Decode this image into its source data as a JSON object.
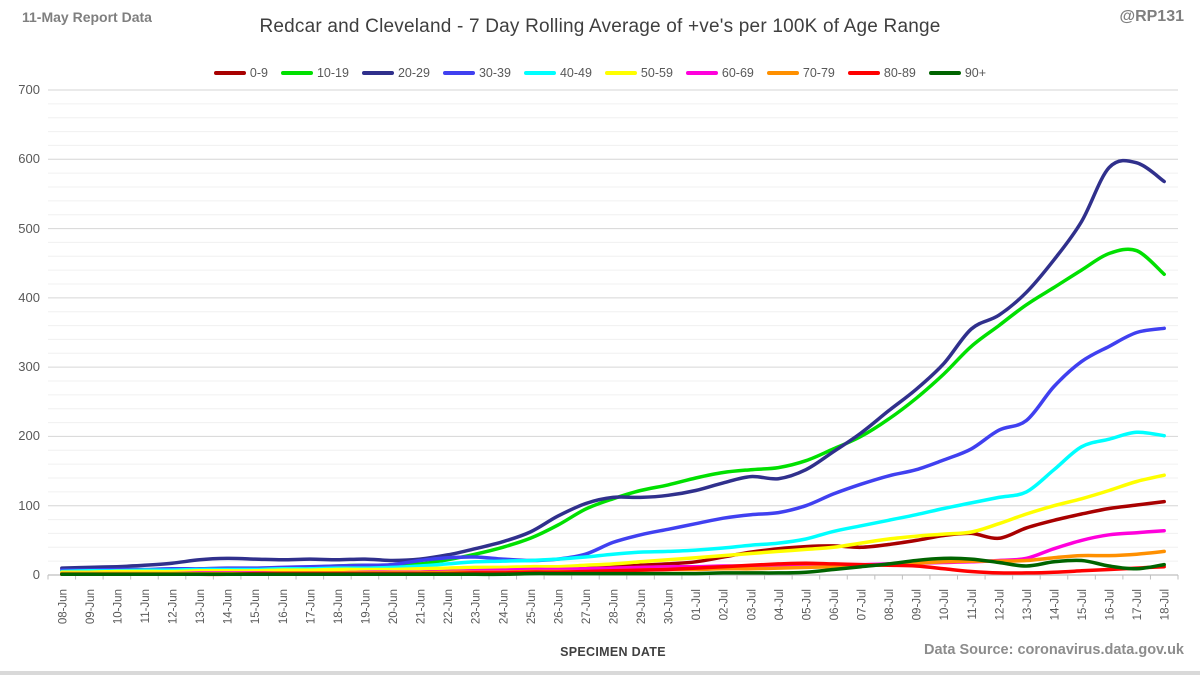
{
  "header": {
    "report_label": "11-May Report Data",
    "handle": "@RP131"
  },
  "footer": {
    "xaxis_title": "SPECIMEN DATE",
    "data_source": "Data Source: coronavirus.data.gov.uk"
  },
  "colors": {
    "title_text": "#3f3f3f",
    "axis_text": "#595959",
    "muted_text": "#7f7f7f",
    "major_grid": "#d6d6d6",
    "minor_grid": "#f0f0f0",
    "axis_line": "#bfbfbf"
  },
  "chart_data": {
    "type": "line",
    "title": "Redcar and Cleveland - 7 Day Rolling Average of +ve's per 100K of Age Range",
    "xlabel": "SPECIMEN DATE",
    "ylabel": "",
    "ylim": [
      0,
      700
    ],
    "y_tick_step": 100,
    "y_minor_step": 20,
    "grid": true,
    "legend_position": "top",
    "categories": [
      "08-Jun",
      "09-Jun",
      "10-Jun",
      "11-Jun",
      "12-Jun",
      "13-Jun",
      "14-Jun",
      "15-Jun",
      "16-Jun",
      "17-Jun",
      "18-Jun",
      "19-Jun",
      "20-Jun",
      "21-Jun",
      "22-Jun",
      "23-Jun",
      "24-Jun",
      "25-Jun",
      "26-Jun",
      "27-Jun",
      "28-Jun",
      "29-Jun",
      "30-Jun",
      "01-Jul",
      "02-Jul",
      "03-Jul",
      "04-Jul",
      "05-Jul",
      "06-Jul",
      "07-Jul",
      "08-Jul",
      "09-Jul",
      "10-Jul",
      "11-Jul",
      "12-Jul",
      "13-Jul",
      "14-Jul",
      "15-Jul",
      "16-Jul",
      "17-Jul",
      "18-Jul"
    ],
    "series": [
      {
        "name": "0-9",
        "color": "#a80000",
        "values": [
          2,
          2,
          2,
          2,
          3,
          3,
          3,
          3,
          3,
          4,
          4,
          4,
          4,
          5,
          5,
          6,
          7,
          8,
          9,
          10,
          12,
          14,
          16,
          19,
          26,
          33,
          38,
          41,
          42,
          40,
          44,
          50,
          57,
          60,
          53,
          68,
          79,
          88,
          96,
          101,
          106
        ]
      },
      {
        "name": "10-19",
        "color": "#00e000",
        "values": [
          3,
          4,
          4,
          5,
          6,
          7,
          8,
          9,
          10,
          11,
          13,
          14,
          14,
          16,
          22,
          30,
          40,
          53,
          72,
          95,
          110,
          122,
          130,
          140,
          148,
          152,
          155,
          165,
          182,
          200,
          225,
          255,
          290,
          330,
          360,
          390,
          415,
          440,
          464,
          468,
          434
        ]
      },
      {
        "name": "20-29",
        "color": "#30308c",
        "values": [
          10,
          11,
          12,
          14,
          17,
          22,
          24,
          23,
          22,
          23,
          22,
          23,
          21,
          23,
          29,
          38,
          48,
          62,
          85,
          103,
          112,
          112,
          115,
          122,
          133,
          142,
          139,
          152,
          178,
          205,
          237,
          268,
          305,
          355,
          375,
          408,
          455,
          510,
          588,
          595,
          568
        ]
      },
      {
        "name": "30-39",
        "color": "#4040f0",
        "values": [
          7,
          7,
          8,
          8,
          9,
          9,
          10,
          10,
          11,
          12,
          13,
          14,
          15,
          21,
          25,
          26,
          23,
          21,
          23,
          30,
          47,
          58,
          66,
          74,
          82,
          87,
          90,
          100,
          117,
          131,
          143,
          152,
          166,
          182,
          209,
          223,
          272,
          308,
          330,
          350,
          356
        ]
      },
      {
        "name": "40-49",
        "color": "#00ffff",
        "values": [
          5,
          6,
          6,
          7,
          7,
          8,
          8,
          8,
          9,
          9,
          10,
          10,
          11,
          13,
          16,
          19,
          20,
          21,
          23,
          26,
          30,
          33,
          34,
          36,
          39,
          43,
          46,
          52,
          63,
          71,
          79,
          87,
          96,
          104,
          112,
          120,
          152,
          185,
          196,
          206,
          201
        ]
      },
      {
        "name": "50-59",
        "color": "#ffff00",
        "values": [
          4,
          4,
          5,
          5,
          5,
          6,
          6,
          6,
          7,
          7,
          8,
          8,
          8,
          9,
          10,
          11,
          11,
          12,
          12,
          14,
          16,
          19,
          22,
          25,
          28,
          31,
          34,
          37,
          40,
          46,
          52,
          56,
          59,
          62,
          74,
          88,
          100,
          110,
          122,
          135,
          144
        ]
      },
      {
        "name": "60-69",
        "color": "#ff00dc",
        "values": [
          2,
          2,
          2,
          2,
          2,
          3,
          3,
          3,
          3,
          3,
          3,
          4,
          4,
          4,
          5,
          6,
          7,
          8,
          8,
          9,
          10,
          11,
          12,
          12,
          13,
          13,
          14,
          14,
          15,
          15,
          16,
          17,
          18,
          19,
          21,
          24,
          38,
          50,
          58,
          61,
          64
        ]
      },
      {
        "name": "70-79",
        "color": "#ff9000",
        "values": [
          2,
          2,
          2,
          2,
          2,
          2,
          2,
          2,
          3,
          3,
          3,
          3,
          3,
          3,
          4,
          4,
          4,
          5,
          5,
          5,
          6,
          7,
          8,
          8,
          9,
          9,
          10,
          11,
          12,
          13,
          15,
          17,
          19,
          20,
          20,
          21,
          25,
          28,
          28,
          30,
          34
        ]
      },
      {
        "name": "80-89",
        "color": "#ff0000",
        "values": [
          1,
          1,
          1,
          1,
          1,
          1,
          1,
          2,
          2,
          2,
          2,
          2,
          2,
          2,
          2,
          3,
          3,
          4,
          4,
          5,
          6,
          7,
          8,
          10,
          12,
          14,
          16,
          17,
          16,
          15,
          14,
          13,
          9,
          5,
          3,
          3,
          4,
          6,
          8,
          10,
          12
        ]
      },
      {
        "name": "90+",
        "color": "#006400",
        "values": [
          1,
          1,
          1,
          1,
          1,
          1,
          1,
          1,
          1,
          1,
          1,
          1,
          1,
          1,
          1,
          1,
          1,
          2,
          2,
          2,
          2,
          2,
          2,
          2,
          3,
          3,
          3,
          4,
          8,
          12,
          16,
          21,
          24,
          23,
          18,
          13,
          19,
          21,
          13,
          9,
          15
        ]
      }
    ]
  }
}
